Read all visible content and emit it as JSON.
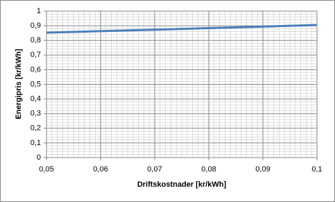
{
  "chart_data": {
    "type": "line",
    "xlabel": "Driftskostnader [kr/kWh]",
    "ylabel": "Energipris [kr/kWh]",
    "x": [
      0.05,
      0.06,
      0.07,
      0.08,
      0.09,
      0.1
    ],
    "series": [
      {
        "color": "#4a7ebb",
        "values": [
          0.853,
          0.863,
          0.873,
          0.884,
          0.894,
          0.905
        ]
      }
    ],
    "xlim": [
      0.05,
      0.1
    ],
    "xticks": [
      {
        "value": 0.05,
        "label": "0,05"
      },
      {
        "value": 0.06,
        "label": "0,06"
      },
      {
        "value": 0.07,
        "label": "0,07"
      },
      {
        "value": 0.08,
        "label": "0,08"
      },
      {
        "value": 0.09,
        "label": "0,09"
      },
      {
        "value": 0.1,
        "label": "0,1"
      }
    ],
    "ylim": [
      0,
      1
    ],
    "yticks": [
      0,
      {
        "value": 0.1,
        "label": "0,1"
      },
      {
        "value": 0.2,
        "label": "0,2"
      },
      {
        "value": 0.3,
        "label": "0,3"
      },
      {
        "value": 0.4,
        "label": "0,4"
      },
      {
        "value": 0.5,
        "label": "0,5"
      },
      {
        "value": 0.6,
        "label": "0,6"
      },
      {
        "value": 0.7,
        "label": "0,7"
      },
      {
        "value": 0.8,
        "label": "0,8"
      },
      {
        "value": 0.9,
        "label": "0,9"
      },
      1
    ],
    "grid": true
  }
}
